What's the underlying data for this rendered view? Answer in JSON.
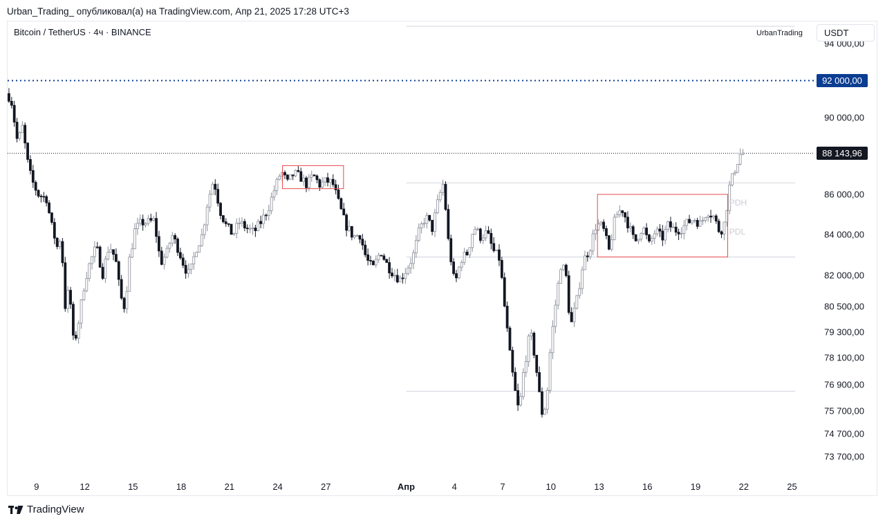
{
  "attribution": "Urban_Trading_ опубликовал(а) на TradingView.com, Апр 21, 2025 17:28 UTC+3",
  "symbol": "Bitcoin / TetherUS · 4ч · BINANCE",
  "author_label": "UrbanTrading",
  "currency": "USDT",
  "footer_brand": "TradingView",
  "colors": {
    "up": "#ffffff",
    "down": "#131722",
    "box": "#e5484d",
    "level_line": "#0b3d91",
    "price_tag": "#131722"
  },
  "chart_data": {
    "type": "candlestick",
    "title": "Bitcoin / TetherUS · 4ч · BINANCE",
    "y_tick_labels": [
      "94 000,00",
      "92 000,00",
      "90 000,00",
      "88 143,96",
      "86 000,00",
      "84 000,00",
      "82 000,00",
      "80 500,00",
      "79 300,00",
      "78 100,00",
      "76 900,00",
      "75 700,00",
      "74 700,00",
      "73 700,00"
    ],
    "y_ticks": [
      94000,
      90000,
      86000,
      84000,
      82000,
      80500,
      79300,
      78100,
      76900,
      75700,
      74700,
      73700
    ],
    "x_tick_labels": [
      "9",
      "12",
      "15",
      "18",
      "21",
      "24",
      "27",
      "Апр",
      "4",
      "7",
      "10",
      "13",
      "16",
      "19",
      "22",
      "25"
    ],
    "x_ticks": [
      9,
      12,
      15,
      18,
      21,
      24,
      27,
      32,
      35,
      38,
      41,
      44,
      47,
      50,
      53,
      56
    ],
    "x_range": [
      7.2,
      57.4
    ],
    "last_price": {
      "value": 88143.96,
      "label": "88 143,96"
    },
    "level": {
      "value": 92000,
      "label": "92 000,00",
      "style": "dotted"
    },
    "range_boxes": [
      {
        "x0": 24.3,
        "x1": 28.1,
        "high": 87500,
        "low": 86300
      },
      {
        "x0": 43.9,
        "x1": 52.0,
        "high": 86000,
        "low": 82900
      }
    ],
    "lines": [
      {
        "x0": 32.0,
        "x1": 56.2,
        "value": 86600
      },
      {
        "x0": 32.0,
        "x1": 56.2,
        "value": 82900
      },
      {
        "x0": 32.0,
        "x1": 56.2,
        "value": 76600
      }
    ],
    "annotations": [
      {
        "text": "PDH",
        "x": 52.1,
        "y": 85450
      },
      {
        "text": "PDL",
        "x": 52.1,
        "y": 84000
      }
    ],
    "ohlc_path": [
      [
        7.2,
        91300
      ],
      [
        7.5,
        91000
      ],
      [
        7.9,
        88700
      ],
      [
        8.2,
        89500
      ],
      [
        8.6,
        87300
      ],
      [
        8.9,
        86500
      ],
      [
        9.2,
        86000
      ],
      [
        9.7,
        85800
      ],
      [
        10.0,
        84500
      ],
      [
        10.4,
        83300
      ],
      [
        10.6,
        84000
      ],
      [
        10.9,
        80100
      ],
      [
        11.1,
        81600
      ],
      [
        11.4,
        78600
      ],
      [
        11.7,
        79800
      ],
      [
        12.1,
        81800
      ],
      [
        12.4,
        82600
      ],
      [
        12.8,
        83400
      ],
      [
        13.2,
        82100
      ],
      [
        13.6,
        83500
      ],
      [
        14.0,
        82800
      ],
      [
        14.3,
        81000
      ],
      [
        14.6,
        80400
      ],
      [
        14.8,
        82500
      ],
      [
        15.2,
        84200
      ],
      [
        15.6,
        84600
      ],
      [
        16.0,
        84600
      ],
      [
        16.4,
        84700
      ],
      [
        16.8,
        82600
      ],
      [
        17.2,
        83100
      ],
      [
        17.5,
        84000
      ],
      [
        17.9,
        83300
      ],
      [
        18.3,
        82400
      ],
      [
        18.6,
        82000
      ],
      [
        19.0,
        83300
      ],
      [
        19.4,
        84000
      ],
      [
        19.7,
        85500
      ],
      [
        20.1,
        86800
      ],
      [
        20.5,
        85200
      ],
      [
        20.9,
        84400
      ],
      [
        21.3,
        84000
      ],
      [
        21.7,
        84600
      ],
      [
        22.2,
        84300
      ],
      [
        22.6,
        84100
      ],
      [
        23.1,
        84700
      ],
      [
        23.5,
        85300
      ],
      [
        23.9,
        86300
      ],
      [
        24.3,
        87200
      ],
      [
        24.7,
        86600
      ],
      [
        25.1,
        87100
      ],
      [
        25.5,
        86900
      ],
      [
        25.9,
        86500
      ],
      [
        26.3,
        87000
      ],
      [
        26.7,
        86500
      ],
      [
        27.1,
        86700
      ],
      [
        27.5,
        86600
      ],
      [
        27.9,
        85500
      ],
      [
        28.3,
        84500
      ],
      [
        28.8,
        83900
      ],
      [
        29.2,
        84000
      ],
      [
        29.6,
        82800
      ],
      [
        30.0,
        82300
      ],
      [
        30.5,
        83200
      ],
      [
        30.9,
        82500
      ],
      [
        31.3,
        82100
      ],
      [
        31.7,
        81800
      ],
      [
        32.1,
        82300
      ],
      [
        32.5,
        82900
      ],
      [
        32.9,
        84200
      ],
      [
        33.3,
        84900
      ],
      [
        33.7,
        84300
      ],
      [
        34.1,
        85800
      ],
      [
        34.4,
        86600
      ],
      [
        34.7,
        83700
      ],
      [
        35.1,
        81500
      ],
      [
        35.5,
        82800
      ],
      [
        35.9,
        83100
      ],
      [
        36.3,
        84400
      ],
      [
        36.7,
        83900
      ],
      [
        37.1,
        84100
      ],
      [
        37.5,
        83200
      ],
      [
        37.9,
        82800
      ],
      [
        38.2,
        80500
      ],
      [
        38.5,
        78400
      ],
      [
        38.8,
        76800
      ],
      [
        39.1,
        75600
      ],
      [
        39.4,
        77600
      ],
      [
        39.8,
        79300
      ],
      [
        40.1,
        78100
      ],
      [
        40.5,
        75600
      ],
      [
        40.8,
        76000
      ],
      [
        41.0,
        78100
      ],
      [
        41.3,
        80200
      ],
      [
        41.7,
        82500
      ],
      [
        42.0,
        82200
      ],
      [
        42.3,
        79500
      ],
      [
        42.7,
        80800
      ],
      [
        43.1,
        82700
      ],
      [
        43.5,
        83300
      ],
      [
        43.9,
        84500
      ],
      [
        44.3,
        84400
      ],
      [
        44.7,
        83200
      ],
      [
        45.1,
        84900
      ],
      [
        45.5,
        85300
      ],
      [
        45.9,
        84500
      ],
      [
        46.3,
        83600
      ],
      [
        46.8,
        84400
      ],
      [
        47.2,
        83500
      ],
      [
        47.6,
        84200
      ],
      [
        48.0,
        83800
      ],
      [
        48.4,
        84500
      ],
      [
        48.8,
        84200
      ],
      [
        49.2,
        84300
      ],
      [
        49.6,
        84600
      ],
      [
        50.0,
        84800
      ],
      [
        50.4,
        84500
      ],
      [
        50.8,
        85200
      ],
      [
        51.2,
        84900
      ],
      [
        51.6,
        84100
      ],
      [
        51.9,
        84600
      ],
      [
        52.2,
        86400
      ],
      [
        52.6,
        87500
      ],
      [
        52.9,
        88150
      ]
    ]
  }
}
